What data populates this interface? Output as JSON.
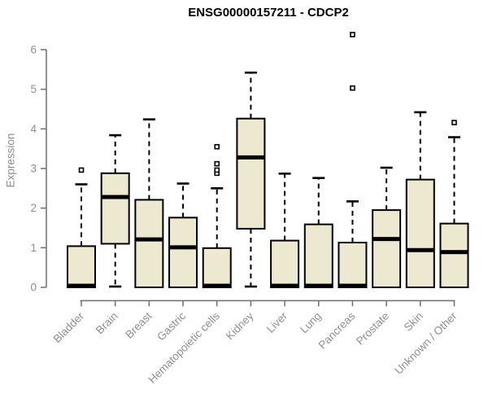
{
  "chart_data": {
    "type": "boxplot",
    "title": "ENSG00000157211 - CDCP2",
    "ylabel": "Expression",
    "xlabel": "",
    "ylim": [
      0,
      6
    ],
    "yticks": [
      0,
      1,
      2,
      3,
      4,
      5,
      6
    ],
    "grid": false,
    "legend": "none",
    "colors": {
      "box_fill": "#EDE8D0",
      "box_stroke": "#000000",
      "median": "#000000",
      "whisker": "#000000",
      "axis": "#6e6e6e",
      "tick_label": "#8e8e8e",
      "title": "#000000",
      "background": "#ffffff"
    },
    "categories": [
      "Bladder",
      "Brain",
      "Breast",
      "Gastric",
      "Hematopoietic cells",
      "Kidney",
      "Liver",
      "Lung",
      "Pancreas",
      "Prostate",
      "Skin",
      "Unknown / Other"
    ],
    "series": [
      {
        "category": "Bladder",
        "whisker_low": 0,
        "q1": 0,
        "median": 0.04,
        "q3": 1.04,
        "whisker_high": 2.6,
        "outliers": [
          2.96
        ]
      },
      {
        "category": "Brain",
        "whisker_low": 0.02,
        "q1": 1.1,
        "median": 2.28,
        "q3": 2.88,
        "whisker_high": 3.84,
        "outliers": []
      },
      {
        "category": "Breast",
        "whisker_low": 0,
        "q1": 0,
        "median": 1.21,
        "q3": 2.21,
        "whisker_high": 4.24,
        "outliers": []
      },
      {
        "category": "Gastric",
        "whisker_low": 0,
        "q1": 0,
        "median": 1.01,
        "q3": 1.76,
        "whisker_high": 2.62,
        "outliers": []
      },
      {
        "category": "Hematopoietic cells",
        "whisker_low": 0,
        "q1": 0,
        "median": 0.04,
        "q3": 0.99,
        "whisker_high": 2.5,
        "outliers": [
          2.88,
          2.96,
          3.12,
          3.55
        ]
      },
      {
        "category": "Kidney",
        "whisker_low": 0.02,
        "q1": 1.48,
        "median": 3.28,
        "q3": 4.26,
        "whisker_high": 5.42,
        "outliers": []
      },
      {
        "category": "Liver",
        "whisker_low": 0,
        "q1": 0,
        "median": 0.04,
        "q3": 1.18,
        "whisker_high": 2.87,
        "outliers": []
      },
      {
        "category": "Lung",
        "whisker_low": 0,
        "q1": 0,
        "median": 0.04,
        "q3": 1.59,
        "whisker_high": 2.76,
        "outliers": []
      },
      {
        "category": "Pancreas",
        "whisker_low": 0,
        "q1": 0,
        "median": 0.04,
        "q3": 1.13,
        "whisker_high": 2.17,
        "outliers": [
          5.03,
          6.38
        ]
      },
      {
        "category": "Prostate",
        "whisker_low": 0,
        "q1": 0,
        "median": 1.22,
        "q3": 1.95,
        "whisker_high": 3.02,
        "outliers": []
      },
      {
        "category": "Skin",
        "whisker_low": 0,
        "q1": 0,
        "median": 0.94,
        "q3": 2.72,
        "whisker_high": 4.42,
        "outliers": []
      },
      {
        "category": "Unknown / Other",
        "whisker_low": 0,
        "q1": 0,
        "median": 0.89,
        "q3": 1.61,
        "whisker_high": 3.79,
        "outliers": [
          4.16
        ]
      }
    ]
  }
}
